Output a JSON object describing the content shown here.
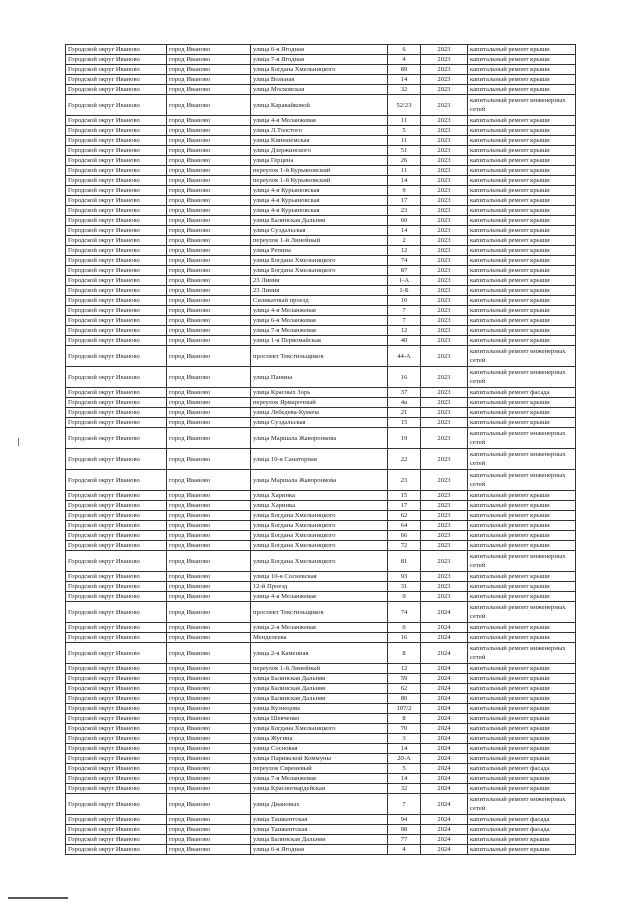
{
  "rows": [
    [
      "Городской округ Иваново",
      "город Иваново",
      "улица 6-я Ягодная",
      "6",
      "2023",
      "капитальный ремонт крыши"
    ],
    [
      "Городской округ Иваново",
      "город Иваново",
      "улица 7-я Ягодная",
      "4",
      "2023",
      "капитальный ремонт крыши"
    ],
    [
      "Городской округ Иваново",
      "город Иваново",
      "улица Богдана Хмельницкого",
      "89",
      "2023",
      "капитальный ремонт крыши"
    ],
    [
      "Городской округ Иваново",
      "город Иваново",
      "улица Вольная",
      "14",
      "2023",
      "капитальный ремонт крыши"
    ],
    [
      "Городской округ Иваново",
      "город Иваново",
      "улица Московская",
      "32",
      "2023",
      "капитальный ремонт крыши"
    ],
    [
      "Городской округ Иваново",
      "город Иваново",
      "улица Каравайковой",
      "52/23",
      "2023",
      "капитальный ремонт инженерных сетей"
    ],
    [
      "Городской округ Иваново",
      "город Иваново",
      "улица 4-я Меланжевая",
      "11",
      "2023",
      "капитальный ремонт крыши"
    ],
    [
      "Городской округ Иваново",
      "город Иваново",
      "улица Л.Толстого",
      "5",
      "2023",
      "капитальный ремонт крыши"
    ],
    [
      "Городской округ Иваново",
      "город Иваново",
      "улица Кинешемская",
      "11",
      "2023",
      "капитальный ремонт крыши"
    ],
    [
      "Городской округ Иваново",
      "город Иваново",
      "улица Дзержинского",
      "51",
      "2023",
      "капитальный ремонт крыши"
    ],
    [
      "Городской округ Иваново",
      "город Иваново",
      "улица Герцена",
      "26",
      "2023",
      "капитальный ремонт крыши"
    ],
    [
      "Городской округ Иваново",
      "город Иваново",
      "переулок 1-й Курьяновский",
      "11",
      "2023",
      "капитальный ремонт крыши"
    ],
    [
      "Городской округ Иваново",
      "город Иваново",
      "переулок 1-й Курьяновский",
      "14",
      "2023",
      "капитальный ремонт крыши"
    ],
    [
      "Городской округ Иваново",
      "город Иваново",
      "улица 4-я Курьяновская",
      "9",
      "2023",
      "капитальный ремонт крыши"
    ],
    [
      "Городской округ Иваново",
      "город Иваново",
      "улица 4-я Курьяновская",
      "17",
      "2023",
      "капитальный ремонт крыши"
    ],
    [
      "Городской округ Иваново",
      "город Иваново",
      "улица 4-я Курьяновская",
      "23",
      "2023",
      "капитальный ремонт крыши"
    ],
    [
      "Городской округ Иваново",
      "город Иваново",
      "улица Балинская Дальняя",
      "60",
      "2023",
      "капитальный ремонт крыши"
    ],
    [
      "Городской округ Иваново",
      "город Иваново",
      "улица Суздальская",
      "14",
      "2023",
      "капитальный ремонт крыши"
    ],
    [
      "Городской округ Иваново",
      "город Иваново",
      "переулок 1-й Линейный",
      "2",
      "2023",
      "капитальный ремонт крыши"
    ],
    [
      "Городской округ Иваново",
      "город Иваново",
      "улица Репина",
      "12",
      "2023",
      "капитальный ремонт крыши"
    ],
    [
      "Городской округ Иваново",
      "город Иваново",
      "улица Богдана Хмельницкого",
      "74",
      "2023",
      "капитальный ремонт крыши"
    ],
    [
      "Городской округ Иваново",
      "город Иваново",
      "улица Богдана Хмельницкого",
      "87",
      "2023",
      "капитальный ремонт крыши"
    ],
    [
      "Городской округ Иваново",
      "город Иваново",
      "23 Линия",
      "1-А",
      "2023",
      "капитальный ремонт крыши"
    ],
    [
      "Городской округ Иваново",
      "город Иваново",
      "23 Линия",
      "1-Б",
      "2023",
      "капитальный ремонт крыши"
    ],
    [
      "Городской округ Иваново",
      "город Иваново",
      "Силикатный проезд",
      "10",
      "2023",
      "капитальный ремонт крыши"
    ],
    [
      "Городской округ Иваново",
      "город Иваново",
      "улица 4-я Меланжевая",
      "7",
      "2023",
      "капитальный ремонт крыши"
    ],
    [
      "Городской округ Иваново",
      "город Иваново",
      "улица 6-я Меланжевая",
      "7",
      "2023",
      "капитальный ремонт крыши"
    ],
    [
      "Городской округ Иваново",
      "город Иваново",
      "улица 7-я Меланжевая",
      "12",
      "2023",
      "капитальный ремонт крыши"
    ],
    [
      "Городской округ Иваново",
      "город Иваново",
      "улица 1-я Первомайская",
      "40",
      "2023",
      "капитальный ремонт крыши"
    ],
    [
      "Городской округ Иваново",
      "город Иваново",
      "проспект Текстильщиков",
      "44-А",
      "2023",
      "капитальный ремонт инженерных сетей"
    ],
    [
      "Городской округ Иваново",
      "город Иваново",
      "улица Панина",
      "16",
      "2023",
      "капитальный ремонт инженерных сетей"
    ],
    [
      "Городской округ Иваново",
      "город Иваново",
      "улица Красных Зорь",
      "37",
      "2023",
      "капитальный ремонт фасада"
    ],
    [
      "Городской округ Иваново",
      "город Иваново",
      "переулок Ярмарочный",
      "4а",
      "2023",
      "капитальный ремонт крыши"
    ],
    [
      "Городской округ Иваново",
      "город Иваново",
      "улица Лебедева-Кумача",
      "21",
      "2023",
      "капитальный ремонт крыши"
    ],
    [
      "Городской округ Иваново",
      "город Иваново",
      "улица Суздальская",
      "15",
      "2023",
      "капитальный ремонт крыши"
    ],
    [
      "Городской округ Иваново",
      "город Иваново",
      "улица Маршала Жаворонкова",
      "19",
      "2023",
      "капитальный ремонт инженерных сетей"
    ],
    [
      "Городской округ Иваново",
      "город Иваново",
      "улица 10-я Санаторная",
      "22",
      "2023",
      "капитальный ремонт инженерных сетей"
    ],
    [
      "Городской округ Иваново",
      "город Иваново",
      "улица Маршала Жаворонкова",
      "23",
      "2023",
      "капитальный ремонт инженерных сетей"
    ],
    [
      "Городской округ Иваново",
      "город Иваново",
      "улица Харинка",
      "15",
      "2023",
      "капитальный ремонт крыши"
    ],
    [
      "Городской округ Иваново",
      "город Иваново",
      "улица Харинка",
      "17",
      "2023",
      "капитальный ремонт крыши"
    ],
    [
      "Городской округ Иваново",
      "город Иваново",
      "улица Богдана Хмельницкого",
      "62",
      "2023",
      "капитальный ремонт крыши"
    ],
    [
      "Городской округ Иваново",
      "город Иваново",
      "улица Богдана Хмельницкого",
      "64",
      "2023",
      "капитальный ремонт крыши"
    ],
    [
      "Городской округ Иваново",
      "город Иваново",
      "улица Богдана Хмельницкого",
      "66",
      "2023",
      "капитальный ремонт крыши"
    ],
    [
      "Городской округ Иваново",
      "город Иваново",
      "улица Богдана Хмельницкого",
      "72",
      "2023",
      "капитальный ремонт крыши"
    ],
    [
      "Городской округ Иваново",
      "город Иваново",
      "улица Богдана Хмельницкого",
      "81",
      "2023",
      "капитальный ремонт инженерных сетей"
    ],
    [
      "Городской округ Иваново",
      "город Иваново",
      "улица 10-я Сосневская",
      "93",
      "2023",
      "капитальный ремонт крыши"
    ],
    [
      "Городской округ Иваново",
      "город Иваново",
      "12-й Проезд",
      "31",
      "2023",
      "капитальный ремонт крыши"
    ],
    [
      "Городской округ Иваново",
      "город Иваново",
      "улица 4-я Меланжевая",
      "9",
      "2023",
      "капитальный ремонт крыши"
    ],
    [
      "Городской округ Иваново",
      "город Иваново",
      "проспект Текстильщиков",
      "74",
      "2024",
      "капитальный ремонт инженерных сетей"
    ],
    [
      "Городской округ Иваново",
      "город Иваново",
      "улица 2-я Меланжевая",
      "6",
      "2024",
      "капитальный ремонт крыши"
    ],
    [
      "Городской округ Иваново",
      "город Иваново",
      "Менделеева",
      "16",
      "2024",
      "капитальный ремонт крыши"
    ],
    [
      "Городской округ Иваново",
      "город Иваново",
      "улица 2-я Каменная",
      "8",
      "2024",
      "капитальный ремонт инженерных сетей"
    ],
    [
      "Городской округ Иваново",
      "город Иваново",
      "переулок 1-й Линейный",
      "12",
      "2024",
      "капитальный ремонт крыши"
    ],
    [
      "Городской округ Иваново",
      "город Иваново",
      "улица Балинская Дальняя",
      "59",
      "2024",
      "капитальный ремонт крыши"
    ],
    [
      "Городской округ Иваново",
      "город Иваново",
      "улица Балинская Дальняя",
      "62",
      "2024",
      "капитальный ремонт крыши"
    ],
    [
      "Городской округ Иваново",
      "город Иваново",
      "улица Балинская Дальняя",
      "80",
      "2024",
      "капитальный ремонт крыши"
    ],
    [
      "Городской округ Иваново",
      "город Иваново",
      "улица Кузнецова",
      "107/2",
      "2024",
      "капитальный ремонт крыши"
    ],
    [
      "Городской округ Иваново",
      "город Иваново",
      "улица Шевченко",
      "8",
      "2024",
      "капитальный ремонт крыши"
    ],
    [
      "Городской округ Иваново",
      "город Иваново",
      "улица Богдана Хмельницкого",
      "70",
      "2024",
      "капитальный ремонт крыши"
    ],
    [
      "Городской округ Иваново",
      "город Иваново",
      "улица Жугина",
      "3",
      "2024",
      "капитальный ремонт крыши"
    ],
    [
      "Городской округ Иваново",
      "город Иваново",
      "улица Сосновая",
      "14",
      "2024",
      "капитальный ремонт крыши"
    ],
    [
      "Городской округ Иваново",
      "город Иваново",
      "улица Парижской Коммуны",
      "20-А",
      "2024",
      "капитальный ремонт крыши"
    ],
    [
      "Городской округ Иваново",
      "город Иваново",
      "переулок Сиреневый",
      "5",
      "2024",
      "капитальный ремонт фасада"
    ],
    [
      "Городской округ Иваново",
      "город Иваново",
      "улица 7-я Меланжевая",
      "14",
      "2024",
      "капитальный ремонт крыши"
    ],
    [
      "Городской округ Иваново",
      "город Иваново",
      "улица Красногвардейская",
      "32",
      "2024",
      "капитальный ремонт крыши"
    ],
    [
      "Городской округ Иваново",
      "город Иваново",
      "улица Диановых",
      "7",
      "2024",
      "капитальный ремонт инженерных сетей"
    ],
    [
      "Городской округ Иваново",
      "город Иваново",
      "улица Ташкентская",
      "94",
      "2024",
      "капитальный ремонт фасада"
    ],
    [
      "Городской округ Иваново",
      "город Иваново",
      "улица Ташкентская",
      "98",
      "2024",
      "капитальный ремонт фасада"
    ],
    [
      "Городской округ Иваново",
      "город Иваново",
      "улица Балинская Дальняя",
      "77",
      "2024",
      "капитальный ремонт крыши"
    ],
    [
      "Городской округ Иваново",
      "город Иваново",
      "улица 6-я Ягодная",
      "4",
      "2024",
      "капитальный ремонт крыши"
    ]
  ]
}
